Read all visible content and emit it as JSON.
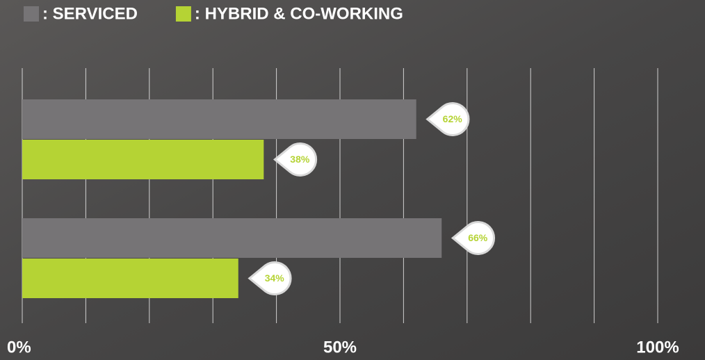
{
  "chart_data": {
    "type": "bar",
    "orientation": "horizontal",
    "categories": [
      null,
      null
    ],
    "series": [
      {
        "name": ": SERVICED",
        "color": "#767476",
        "values": [
          62,
          66
        ],
        "value_labels": [
          "62%",
          "66%"
        ]
      },
      {
        "name": ": HYBRID & CO-WORKING",
        "color": "#b5d334",
        "values": [
          38,
          34
        ],
        "value_labels": [
          "38%",
          "34%"
        ]
      }
    ],
    "xlim": [
      0,
      100
    ],
    "xticks": [
      {
        "value": 0,
        "label": "0%"
      },
      {
        "value": 10,
        "label": null
      },
      {
        "value": 20,
        "label": null
      },
      {
        "value": 30,
        "label": null
      },
      {
        "value": 40,
        "label": null
      },
      {
        "value": 50,
        "label": "50%"
      },
      {
        "value": 60,
        "label": null
      },
      {
        "value": 70,
        "label": null
      },
      {
        "value": 80,
        "label": null
      },
      {
        "value": 90,
        "label": null
      },
      {
        "value": 100,
        "label": "100%"
      }
    ],
    "grid": true,
    "legend": "top-left",
    "value_label_color": "#b5d334"
  }
}
